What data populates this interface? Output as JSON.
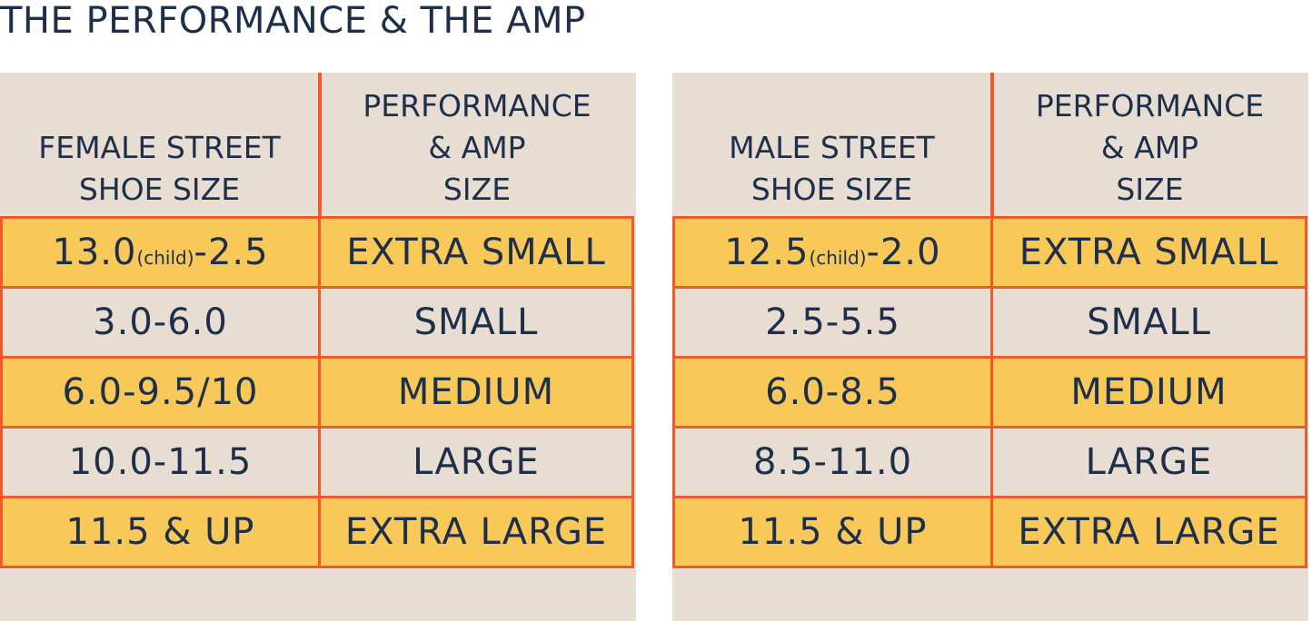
{
  "title": "THE PERFORMANCE & THE AMP",
  "tables": [
    {
      "header": {
        "street": [
          "FEMALE STREET",
          "SHOE SIZE"
        ],
        "amp": [
          "PERFORMANCE",
          "& AMP",
          "SIZE"
        ]
      },
      "rows": [
        {
          "street_main": "13.0",
          "street_note": "(child)",
          "street_tail": "-2.5",
          "amp": "EXTRA SMALL"
        },
        {
          "street_main": "3.0-6.0",
          "street_note": "",
          "street_tail": "",
          "amp": "SMALL"
        },
        {
          "street_main": "6.0-9.5/10",
          "street_note": "",
          "street_tail": "",
          "amp": "MEDIUM"
        },
        {
          "street_main": "10.0-11.5",
          "street_note": "",
          "street_tail": "",
          "amp": "LARGE"
        },
        {
          "street_main": "11.5 & UP",
          "street_note": "",
          "street_tail": "",
          "amp": "EXTRA LARGE"
        }
      ]
    },
    {
      "header": {
        "street": [
          "MALE STREET",
          "SHOE SIZE"
        ],
        "amp": [
          "PERFORMANCE",
          "& AMP",
          "SIZE"
        ]
      },
      "rows": [
        {
          "street_main": "12.5",
          "street_note": "(child)",
          "street_tail": "-2.0",
          "amp": "EXTRA SMALL"
        },
        {
          "street_main": "2.5-5.5",
          "street_note": "",
          "street_tail": "",
          "amp": "SMALL"
        },
        {
          "street_main": "6.0-8.5",
          "street_note": "",
          "street_tail": "",
          "amp": "MEDIUM"
        },
        {
          "street_main": "8.5-11.0",
          "street_note": "",
          "street_tail": "",
          "amp": "LARGE"
        },
        {
          "street_main": "11.5 & UP",
          "street_note": "",
          "street_tail": "",
          "amp": "EXTRA LARGE"
        }
      ]
    }
  ],
  "colors": {
    "background": "#e8ddd3",
    "highlight": "#f8c859",
    "border": "#ee5a2a",
    "text": "#1e2f4a"
  }
}
